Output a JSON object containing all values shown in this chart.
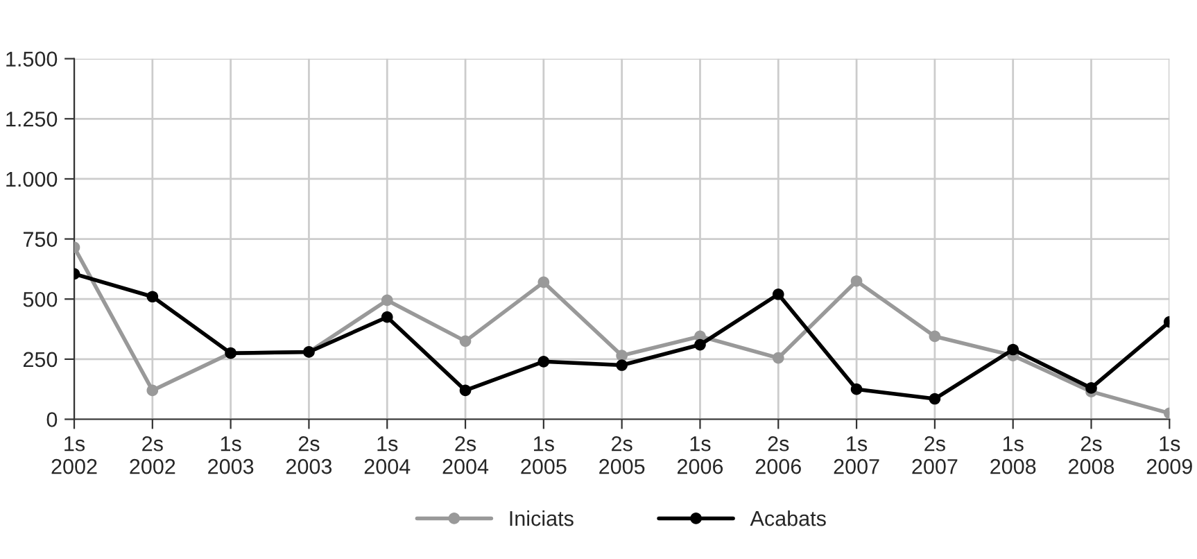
{
  "chart_data": {
    "type": "line",
    "categories": [
      "1s\n2002",
      "2s\n2002",
      "1s\n2003",
      "2s\n2003",
      "1s\n2004",
      "2s\n2004",
      "1s\n2005",
      "2s\n2005",
      "1s\n2006",
      "2s\n2006",
      "1s\n2007",
      "2s\n2007",
      "1s\n2008",
      "2s\n2008",
      "1s\n2009"
    ],
    "series": [
      {
        "name": "Iniciats",
        "color": "#999999",
        "values": [
          715,
          120,
          275,
          280,
          495,
          325,
          570,
          265,
          345,
          255,
          575,
          345,
          265,
          115,
          25
        ]
      },
      {
        "name": "Acabats",
        "color": "#000000",
        "values": [
          605,
          510,
          275,
          280,
          425,
          120,
          240,
          225,
          310,
          520,
          125,
          85,
          290,
          130,
          405
        ]
      }
    ],
    "ylim": [
      0,
      1500
    ],
    "yticks": [
      0,
      250,
      500,
      750,
      {
        "value": 1000,
        "label": "1.000"
      },
      {
        "value": 1250,
        "label": "1.250"
      },
      {
        "value": 1500,
        "label": "1.500"
      }
    ],
    "grid": true,
    "legend": "bottom",
    "marker": "circle",
    "line_style": "solid"
  }
}
